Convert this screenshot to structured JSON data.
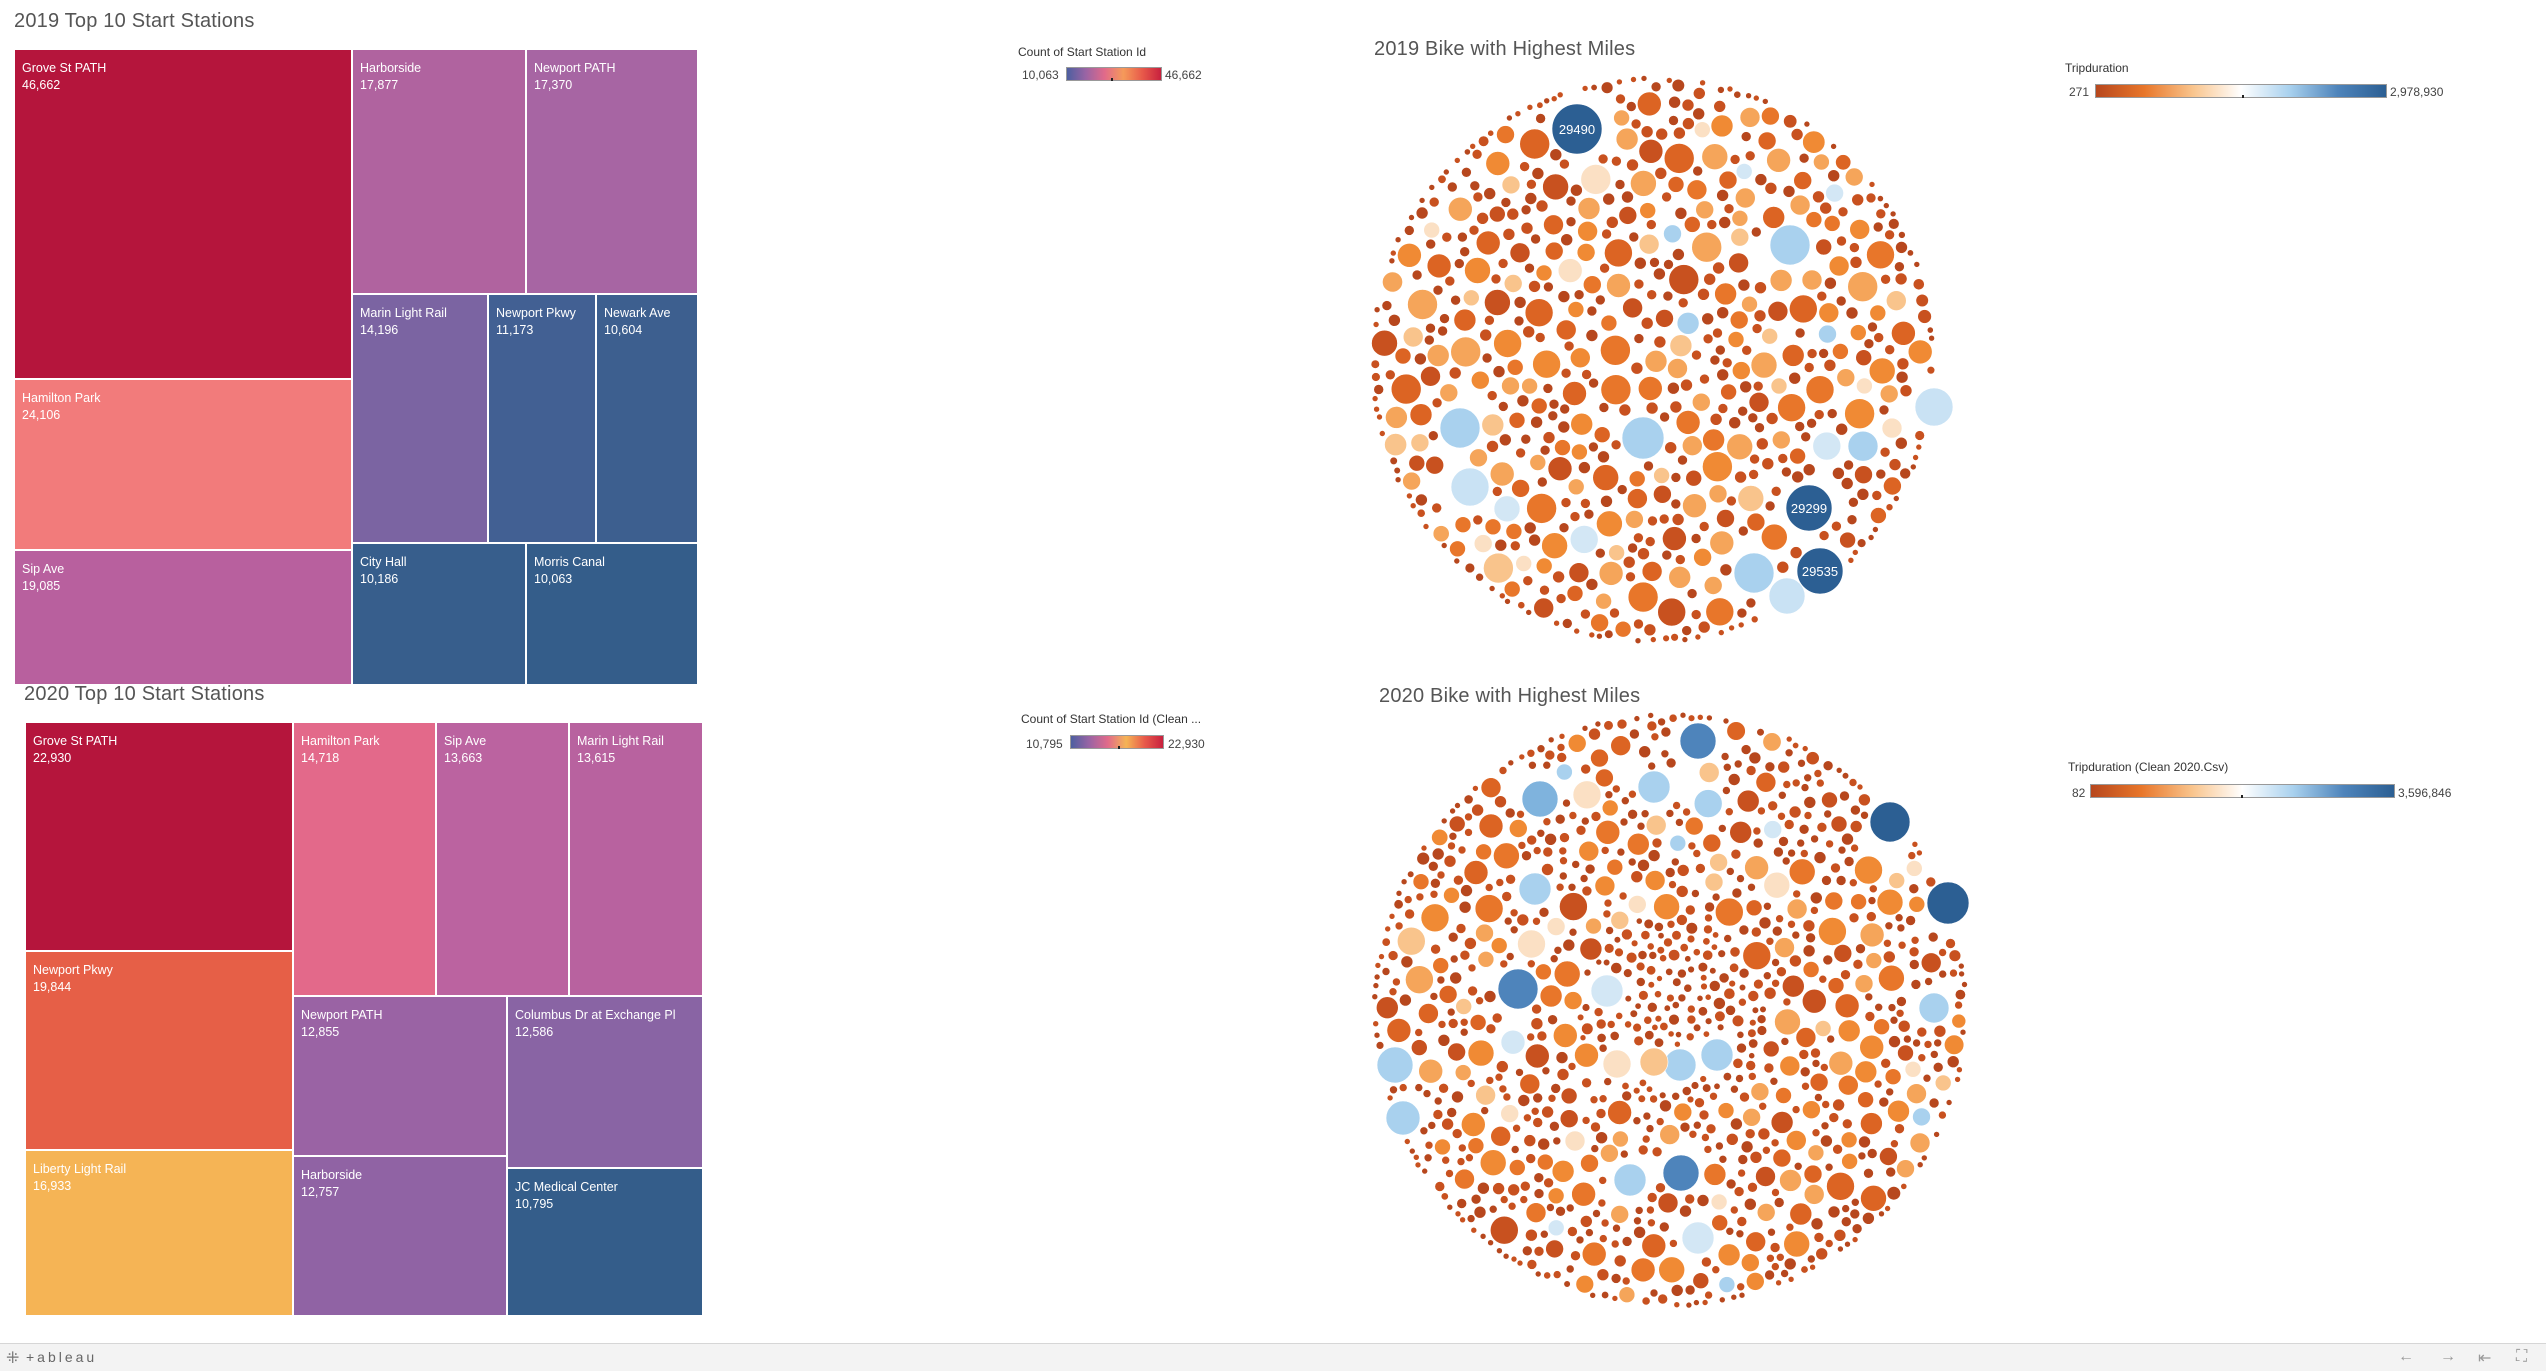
{
  "chart_data": [
    {
      "type": "heatmap",
      "subtype": "treemap",
      "title": "2019 Top 10 Start Stations",
      "color_legend": {
        "title": "Count of Start Station Id",
        "min_label": "10,063",
        "max_label": "46,662"
      },
      "items": [
        {
          "name": "Grove St PATH",
          "label": "46,662",
          "value": 46662,
          "color": "#b5153c"
        },
        {
          "name": "Hamilton Park",
          "label": "24,106",
          "value": 24106,
          "color": "#f27b7b"
        },
        {
          "name": "Sip Ave",
          "label": "19,085",
          "value": 19085,
          "color": "#b8609e"
        },
        {
          "name": "Harborside",
          "label": "17,877",
          "value": 17877,
          "color": "#b0639f"
        },
        {
          "name": "Newport PATH",
          "label": "17,370",
          "value": 17370,
          "color": "#a765a3"
        },
        {
          "name": "Marin Light Rail",
          "label": "14,196",
          "value": 14196,
          "color": "#7b64a2"
        },
        {
          "name": "Newport Pkwy",
          "label": "11,173",
          "value": 11173,
          "color": "#426093"
        },
        {
          "name": "Newark Ave",
          "label": "10,604",
          "value": 10604,
          "color": "#3d5f8f"
        },
        {
          "name": "City Hall",
          "label": "10,186",
          "value": 10186,
          "color": "#375e8c"
        },
        {
          "name": "Morris Canal",
          "label": "10,063",
          "value": 10063,
          "color": "#345d8a"
        }
      ]
    },
    {
      "type": "heatmap",
      "subtype": "treemap",
      "title": "2020 Top 10 Start Stations",
      "color_legend": {
        "title": "Count of Start Station Id (Clean ...",
        "min_label": "10,795",
        "max_label": "22,930"
      },
      "items": [
        {
          "name": "Grove St PATH",
          "label": "22,930",
          "value": 22930,
          "color": "#b5153c"
        },
        {
          "name": "Newport Pkwy",
          "label": "19,844",
          "value": 19844,
          "color": "#e65f47"
        },
        {
          "name": "Liberty Light Rail",
          "label": "16,933",
          "value": 16933,
          "color": "#f5b455"
        },
        {
          "name": "Hamilton Park",
          "label": "14,718",
          "value": 14718,
          "color": "#e3698a"
        },
        {
          "name": "Sip Ave",
          "label": "13,663",
          "value": 13663,
          "color": "#bb63a0"
        },
        {
          "name": "Marin Light Rail",
          "label": "13,615",
          "value": 13615,
          "color": "#b8629f"
        },
        {
          "name": "Newport PATH",
          "label": "12,855",
          "value": 12855,
          "color": "#9a63a4"
        },
        {
          "name": "Columbus Dr at Exchange Pl",
          "label": "12,586",
          "value": 12586,
          "color": "#8964a4"
        },
        {
          "name": "Harborside",
          "label": "12,757",
          "value": 12757,
          "color": "#9063a4"
        },
        {
          "name": "JC Medical Center",
          "label": "10,795",
          "value": 10795,
          "color": "#345d8a"
        }
      ]
    },
    {
      "type": "scatter",
      "subtype": "packed-bubbles",
      "title": "2019 Bike with Highest Miles",
      "color_legend": {
        "title": "Tripduration",
        "min_label": "271",
        "max_label": "2,978,930"
      },
      "labeled_bubbles": [
        "29490",
        "29299",
        "29535"
      ]
    },
    {
      "type": "scatter",
      "subtype": "packed-bubbles",
      "title": "2020 Bike with Highest Miles",
      "color_legend": {
        "title": "Tripduration (Clean 2020.Csv)",
        "min_label": "82",
        "max_label": "3,596,846"
      },
      "labeled_bubbles": []
    }
  ],
  "footer": {
    "logo": "+ableau",
    "plus": "⁜"
  },
  "colors": {
    "orange_ramp": [
      "#b7471d",
      "#c8511f",
      "#dc6423",
      "#e8762a",
      "#f08a34",
      "#f5a55a",
      "#f9c48c",
      "#fbe0c4"
    ],
    "blue_ramp": [
      "#d3e7f5",
      "#a9d1ee",
      "#7fb3dd",
      "#4e84bb",
      "#2c5f93"
    ]
  }
}
